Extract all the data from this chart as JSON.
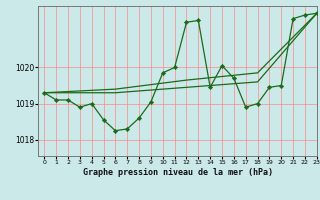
{
  "title": "Graphe pression niveau de la mer (hPa)",
  "bg_color": "#cce9e9",
  "grid_color": "#ff8888",
  "line_color": "#1a6b1a",
  "marker_color": "#1a6b1a",
  "xlim": [
    -0.5,
    23
  ],
  "ylim": [
    1017.55,
    1021.7
  ],
  "yticks": [
    1018,
    1019,
    1020
  ],
  "xticks": [
    0,
    1,
    2,
    3,
    4,
    5,
    6,
    7,
    8,
    9,
    10,
    11,
    12,
    13,
    14,
    15,
    16,
    17,
    18,
    19,
    20,
    21,
    22,
    23
  ],
  "xtick_labels": [
    "0",
    "1",
    "2",
    "3",
    "4",
    "5",
    "6",
    "7",
    "8",
    "9",
    "10",
    "11",
    "12",
    "13",
    "14",
    "15",
    "16",
    "17",
    "18",
    "19",
    "20",
    "21",
    "22",
    "23"
  ],
  "series": [
    {
      "x": [
        0,
        1,
        2,
        3,
        4,
        5,
        6,
        7,
        8,
        9,
        10,
        11,
        12,
        13,
        14,
        15,
        16,
        17,
        18,
        19,
        20,
        21,
        22,
        23
      ],
      "y": [
        1019.3,
        1019.1,
        1019.1,
        1018.9,
        1019.0,
        1018.55,
        1018.25,
        1018.3,
        1018.6,
        1019.05,
        1019.85,
        1020.0,
        1021.25,
        1021.3,
        1019.45,
        1020.05,
        1019.7,
        1018.9,
        1019.0,
        1019.45,
        1019.5,
        1021.35,
        1021.45,
        1021.5
      ],
      "with_markers": true
    },
    {
      "x": [
        0,
        6,
        12,
        18,
        23
      ],
      "y": [
        1019.3,
        1019.3,
        1019.45,
        1019.6,
        1021.5
      ],
      "with_markers": false
    },
    {
      "x": [
        0,
        6,
        12,
        18,
        23
      ],
      "y": [
        1019.3,
        1019.4,
        1019.65,
        1019.85,
        1021.5
      ],
      "with_markers": false
    }
  ]
}
